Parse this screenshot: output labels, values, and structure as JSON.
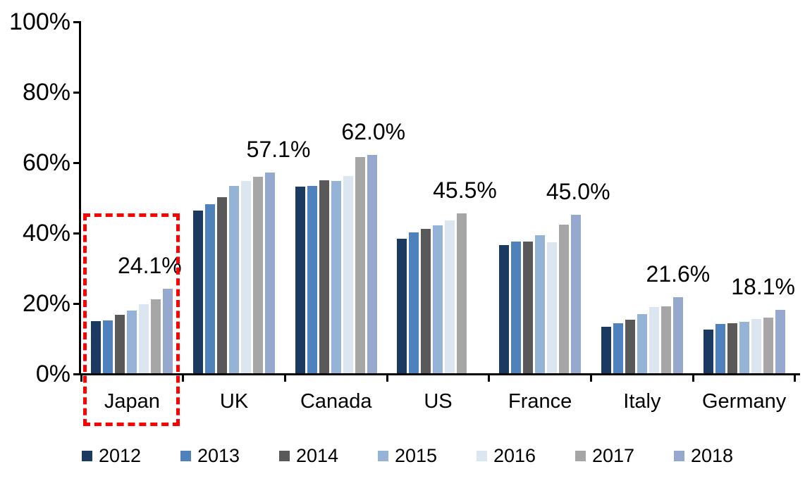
{
  "chart_data": {
    "type": "bar",
    "title": "",
    "categories": [
      "Japan",
      "UK",
      "Canada",
      "US",
      "France",
      "Italy",
      "Germany"
    ],
    "series": [
      {
        "name": "2012",
        "color": "#1B3A61",
        "values": [
          14.8,
          46.3,
          53.0,
          38.2,
          36.5,
          13.2,
          12.5
        ]
      },
      {
        "name": "2013",
        "color": "#4F81BD",
        "values": [
          15.0,
          48.0,
          53.2,
          40.0,
          37.5,
          14.2,
          14.0
        ]
      },
      {
        "name": "2014",
        "color": "#595959",
        "values": [
          16.6,
          50.0,
          54.8,
          41.0,
          37.5,
          15.3,
          14.3
        ]
      },
      {
        "name": "2015",
        "color": "#95B3D7",
        "values": [
          17.9,
          53.2,
          54.6,
          42.1,
          39.2,
          16.9,
          14.7
        ]
      },
      {
        "name": "2016",
        "color": "#DCE6F1",
        "values": [
          19.7,
          54.7,
          56.0,
          43.5,
          37.3,
          18.9,
          15.4
        ]
      },
      {
        "name": "2017",
        "color": "#A6A6A6",
        "values": [
          21.0,
          55.8,
          61.4,
          45.5,
          42.3,
          19.1,
          15.9
        ]
      },
      {
        "name": "2018",
        "color": "#97A8CE",
        "values": [
          24.1,
          57.1,
          62.0,
          null,
          45.0,
          21.6,
          18.1
        ]
      }
    ],
    "value_labels": [
      {
        "category": "Japan",
        "series": "2018",
        "text": "24.1%"
      },
      {
        "category": "UK",
        "series": "2018",
        "text": "57.1%"
      },
      {
        "category": "Canada",
        "series": "2018",
        "text": "62.0%"
      },
      {
        "category": "US",
        "series": "2017",
        "text": "45.5%"
      },
      {
        "category": "France",
        "series": "2018",
        "text": "45.0%"
      },
      {
        "category": "Italy",
        "series": "2018",
        "text": "21.6%"
      },
      {
        "category": "Germany",
        "series": "2018",
        "text": "18.1%"
      }
    ],
    "yticks": [
      {
        "value": 0,
        "label": "0%"
      },
      {
        "value": 20,
        "label": "20%"
      },
      {
        "value": 40,
        "label": "40%"
      },
      {
        "value": 60,
        "label": "60%"
      },
      {
        "value": 80,
        "label": "80%"
      },
      {
        "value": 100,
        "label": "100%"
      }
    ],
    "ylim": [
      0,
      100
    ],
    "grid": false,
    "legend_position": "bottom",
    "axis_color": "#000000"
  },
  "highlight": {
    "category": "Japan",
    "color": "#FF0000",
    "style": "dashed-box"
  }
}
